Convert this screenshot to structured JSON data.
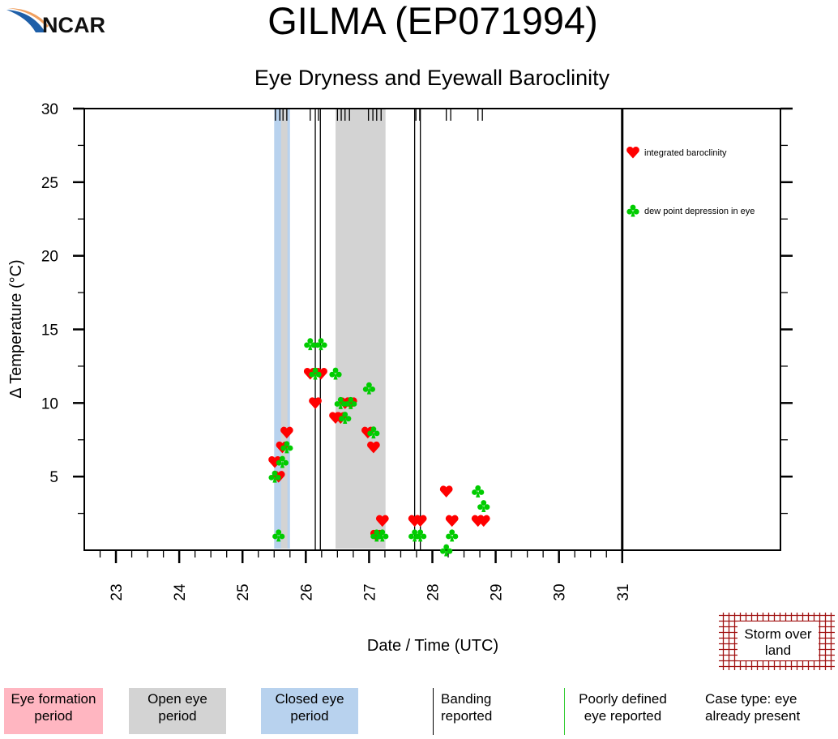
{
  "header": {
    "title": "GILMA (EP071994)",
    "logo": "NCAR"
  },
  "chart_data": {
    "type": "scatter",
    "title": "Eye Dryness and Eyewall Baroclinity",
    "xlabel": "Date / Time (UTC)",
    "ylabel": "Δ Temperature (°C)",
    "xlim": [
      22.5,
      33.5
    ],
    "ylim": [
      0,
      30
    ],
    "x_ticks": [
      "23",
      "24",
      "25",
      "26",
      "27",
      "28",
      "29",
      "30",
      "31"
    ],
    "y_ticks": [
      "5",
      "10",
      "15",
      "20",
      "25",
      "30"
    ],
    "grid": false,
    "legend_placement": "top-right",
    "end_of_track_marker": 31,
    "series": [
      {
        "name": "integrated baroclinity",
        "symbol": "heart",
        "color": "#ff0000",
        "x": [
          25.51,
          25.57,
          25.63,
          25.7,
          26.07,
          26.15,
          26.24,
          26.47,
          26.55,
          26.62,
          26.71,
          26.98,
          27.07,
          27.12,
          27.21,
          27.72,
          27.81,
          28.22,
          28.31,
          28.72,
          28.81
        ],
        "y": [
          6,
          5,
          7,
          8,
          12,
          10,
          12,
          9,
          9,
          10,
          10,
          8,
          7,
          1,
          2,
          2,
          2,
          4,
          2,
          2,
          2
        ]
      },
      {
        "name": "dew point depression in eye",
        "symbol": "club",
        "color": "#00cc00",
        "x": [
          25.51,
          25.57,
          25.63,
          25.7,
          26.07,
          26.15,
          26.24,
          26.47,
          26.55,
          26.62,
          26.71,
          27.0,
          27.07,
          27.12,
          27.21,
          27.72,
          27.81,
          28.22,
          28.31,
          28.72,
          28.81
        ],
        "y": [
          5,
          1,
          6,
          7,
          14,
          12,
          14,
          12,
          10,
          9,
          10,
          11,
          8,
          1,
          1,
          1,
          1,
          0,
          1,
          4,
          3
        ]
      }
    ],
    "observation_times": [
      25.52,
      25.59,
      25.64,
      25.7,
      26.07,
      26.2,
      26.5,
      26.56,
      26.62,
      26.69,
      26.99,
      27.06,
      27.12,
      27.19,
      27.74,
      27.8,
      28.22,
      28.29,
      28.72,
      28.79
    ],
    "closed_eye_periods": [
      [
        25.5,
        25.75
      ]
    ],
    "open_eye_periods": [
      [
        25.61,
        25.71
      ],
      [
        26.47,
        27.26
      ]
    ],
    "banding_reported": [
      26.15,
      26.23,
      27.72,
      27.81
    ],
    "colors": {
      "eye_formation": "#ffb6c1",
      "open_eye": "#d3d3d3",
      "closed_eye": "#b8d2ee",
      "land": "#a01010"
    }
  },
  "legend": {
    "eye_formation": "Eye formation period",
    "open_eye": "Open eye period",
    "closed_eye": "Closed eye period",
    "banding": "Banding reported",
    "poorly_defined": "Poorly defined eye reported",
    "case_type": "Case type: eye already present",
    "storm_over_land": "Storm over land"
  }
}
